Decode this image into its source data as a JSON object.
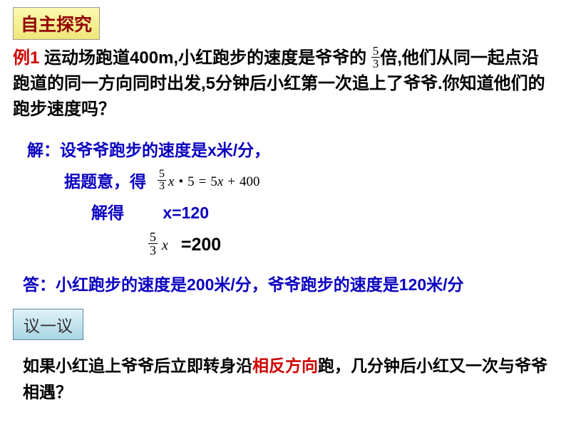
{
  "header": {
    "title": "自主探究"
  },
  "problem": {
    "ex_label": "例1",
    "pre": "  运动场跑道400m,小红跑步的速度是爷爷的 ",
    "frac_num": "5",
    "frac_den": "3",
    "post1": "倍,他们从同一起点沿跑道的同一方向同时出发,5分钟后小红第一次追上了爷爷.你知道他们的跑步速度吗？"
  },
  "solution": {
    "line1": "解：设爷爷跑步的速度是x米/分，",
    "line2_label": "据题意，得",
    "eq": {
      "frac_num": "5",
      "frac_den": "3",
      "body": "x • 5 = 5x + 400"
    },
    "line3_label": "解得",
    "line3_val": "x=120",
    "line4_frac_num": "5",
    "line4_frac_den": "3",
    "line4_var": "x",
    "line4_val": "=200",
    "answer": "答：小红跑步的速度是200米/分，爷爷跑步的速度是120米/分"
  },
  "discuss": {
    "title": "议一议"
  },
  "followup": {
    "pre": "如果小红追上爷爷后立即转身沿",
    "highlight": "相反方向",
    "post": "跑，几分钟后小红又一次与爷爷相遇？"
  },
  "colors": {
    "header_bg_top": "#fcfab0",
    "header_bg_bottom": "#eee679",
    "header_text": "#920404",
    "discuss_bg_top": "#e0f2f7",
    "discuss_bg_bottom": "#a9d6e5",
    "problem_text": "#000000",
    "ex_label": "#d00000",
    "solution_text": "#0a00c0",
    "highlight": "#d00000",
    "page_bg": "#ffffff"
  }
}
